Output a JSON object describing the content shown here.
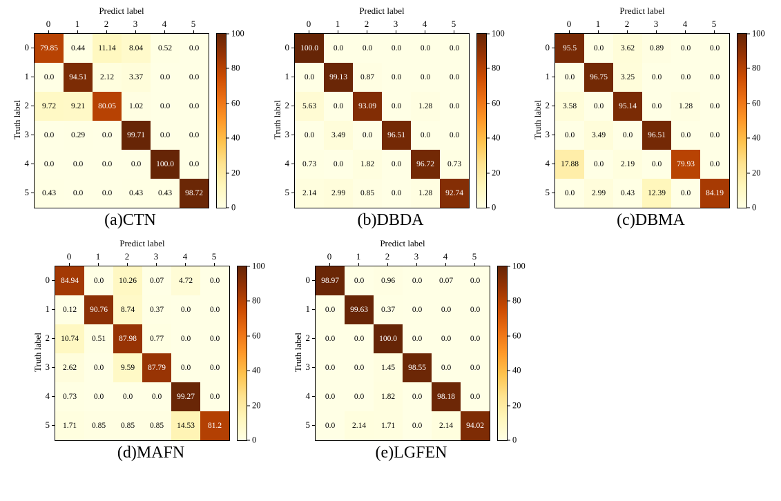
{
  "figure": {
    "predict_label": "Predict label",
    "truth_label": "Truth label",
    "x_ticks": [
      "0",
      "1",
      "2",
      "3",
      "4",
      "5"
    ],
    "y_ticks": [
      "0",
      "1",
      "2",
      "3",
      "4",
      "5"
    ],
    "colorbar_ticks": [
      "0",
      "20",
      "40",
      "60",
      "80",
      "100"
    ],
    "colormap": {
      "name": "YlOrBr",
      "low": "#ffffe5",
      "high": "#662506"
    },
    "text_color_threshold": 50
  },
  "chart_data": [
    {
      "type": "heatmap",
      "title": "(a)CTN",
      "xlabel": "Predict label",
      "ylabel": "Truth label",
      "x": [
        "0",
        "1",
        "2",
        "3",
        "4",
        "5"
      ],
      "y": [
        "0",
        "1",
        "2",
        "3",
        "4",
        "5"
      ],
      "vmin": 0,
      "vmax": 100,
      "values": [
        [
          "79.85",
          "0.44",
          "11.14",
          "8.04",
          "0.52",
          "0.0"
        ],
        [
          "0.0",
          "94.51",
          "2.12",
          "3.37",
          "0.0",
          "0.0"
        ],
        [
          "9.72",
          "9.21",
          "80.05",
          "1.02",
          "0.0",
          "0.0"
        ],
        [
          "0.0",
          "0.29",
          "0.0",
          "99.71",
          "0.0",
          "0.0"
        ],
        [
          "0.0",
          "0.0",
          "0.0",
          "0.0",
          "100.0",
          "0.0"
        ],
        [
          "0.43",
          "0.0",
          "0.0",
          "0.43",
          "0.43",
          "98.72"
        ]
      ]
    },
    {
      "type": "heatmap",
      "title": "(b)DBDA",
      "xlabel": "Predict label",
      "ylabel": "Truth label",
      "x": [
        "0",
        "1",
        "2",
        "3",
        "4",
        "5"
      ],
      "y": [
        "0",
        "1",
        "2",
        "3",
        "4",
        "5"
      ],
      "vmin": 0,
      "vmax": 100,
      "values": [
        [
          "100.0",
          "0.0",
          "0.0",
          "0.0",
          "0.0",
          "0.0"
        ],
        [
          "0.0",
          "99.13",
          "0.87",
          "0.0",
          "0.0",
          "0.0"
        ],
        [
          "5.63",
          "0.0",
          "93.09",
          "0.0",
          "1.28",
          "0.0"
        ],
        [
          "0.0",
          "3.49",
          "0.0",
          "96.51",
          "0.0",
          "0.0"
        ],
        [
          "0.73",
          "0.0",
          "1.82",
          "0.0",
          "96.72",
          "0.73"
        ],
        [
          "2.14",
          "2.99",
          "0.85",
          "0.0",
          "1.28",
          "92.74"
        ]
      ]
    },
    {
      "type": "heatmap",
      "title": "(c)DBMA",
      "xlabel": "Predict label",
      "ylabel": "Truth label",
      "x": [
        "0",
        "1",
        "2",
        "3",
        "4",
        "5"
      ],
      "y": [
        "0",
        "1",
        "2",
        "3",
        "4",
        "5"
      ],
      "vmin": 0,
      "vmax": 100,
      "values": [
        [
          "95.5",
          "0.0",
          "3.62",
          "0.89",
          "0.0",
          "0.0"
        ],
        [
          "0.0",
          "96.75",
          "3.25",
          "0.0",
          "0.0",
          "0.0"
        ],
        [
          "3.58",
          "0.0",
          "95.14",
          "0.0",
          "1.28",
          "0.0"
        ],
        [
          "0.0",
          "3.49",
          "0.0",
          "96.51",
          "0.0",
          "0.0"
        ],
        [
          "17.88",
          "0.0",
          "2.19",
          "0.0",
          "79.93",
          "0.0"
        ],
        [
          "0.0",
          "2.99",
          "0.43",
          "12.39",
          "0.0",
          "84.19"
        ]
      ]
    },
    {
      "type": "heatmap",
      "title": "(d)MAFN",
      "xlabel": "Predict label",
      "ylabel": "Truth label",
      "x": [
        "0",
        "1",
        "2",
        "3",
        "4",
        "5"
      ],
      "y": [
        "0",
        "1",
        "2",
        "3",
        "4",
        "5"
      ],
      "vmin": 0,
      "vmax": 100,
      "values": [
        [
          "84.94",
          "0.0",
          "10.26",
          "0.07",
          "4.72",
          "0.0"
        ],
        [
          "0.12",
          "90.76",
          "8.74",
          "0.37",
          "0.0",
          "0.0"
        ],
        [
          "10.74",
          "0.51",
          "87.98",
          "0.77",
          "0.0",
          "0.0"
        ],
        [
          "2.62",
          "0.0",
          "9.59",
          "87.79",
          "0.0",
          "0.0"
        ],
        [
          "0.73",
          "0.0",
          "0.0",
          "0.0",
          "99.27",
          "0.0"
        ],
        [
          "1.71",
          "0.85",
          "0.85",
          "0.85",
          "14.53",
          "81.2"
        ]
      ]
    },
    {
      "type": "heatmap",
      "title": "(e)LGFEN",
      "xlabel": "Predict label",
      "ylabel": "Truth label",
      "x": [
        "0",
        "1",
        "2",
        "3",
        "4",
        "5"
      ],
      "y": [
        "0",
        "1",
        "2",
        "3",
        "4",
        "5"
      ],
      "vmin": 0,
      "vmax": 100,
      "values": [
        [
          "98.97",
          "0.0",
          "0.96",
          "0.0",
          "0.07",
          "0.0"
        ],
        [
          "0.0",
          "99.63",
          "0.37",
          "0.0",
          "0.0",
          "0.0"
        ],
        [
          "0.0",
          "0.0",
          "100.0",
          "0.0",
          "0.0",
          "0.0"
        ],
        [
          "0.0",
          "0.0",
          "1.45",
          "98.55",
          "0.0",
          "0.0"
        ],
        [
          "0.0",
          "0.0",
          "1.82",
          "0.0",
          "98.18",
          "0.0"
        ],
        [
          "0.0",
          "2.14",
          "1.71",
          "0.0",
          "2.14",
          "94.02"
        ]
      ]
    }
  ]
}
